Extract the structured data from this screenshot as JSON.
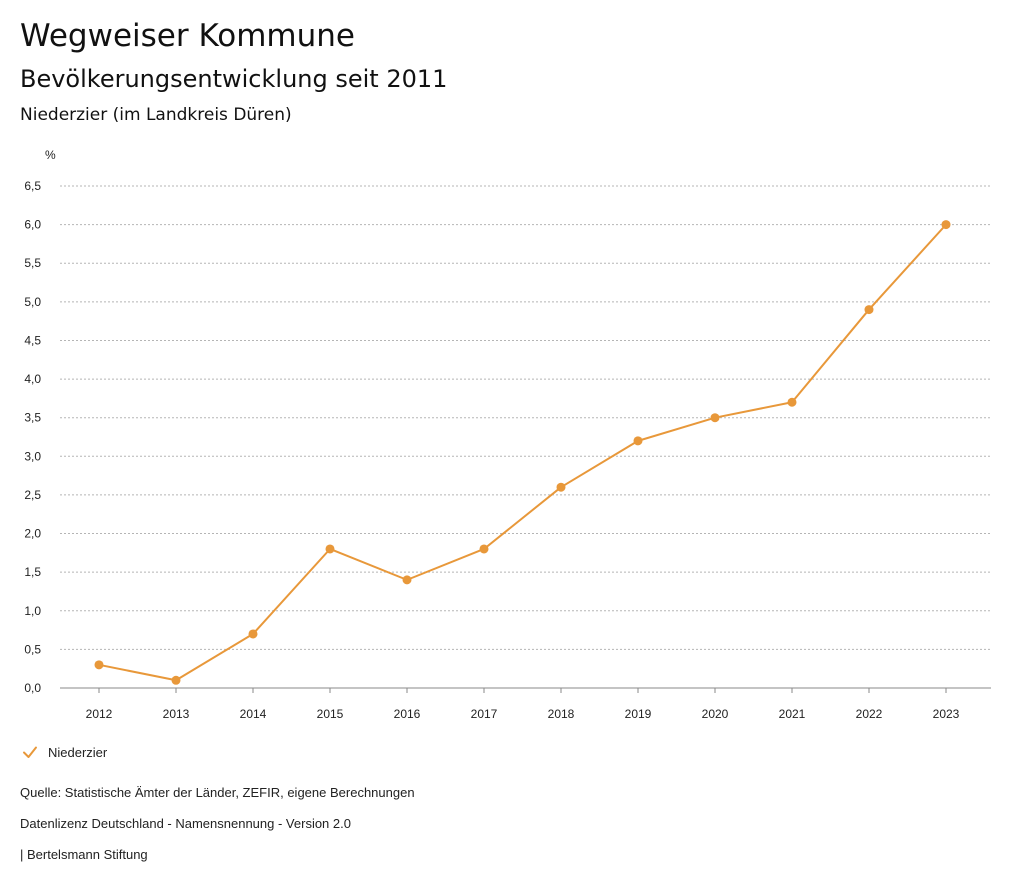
{
  "header": {
    "title": "Wegweiser Kommune",
    "subtitle": "Bevölkerungsentwicklung seit 2011",
    "region": "Niederzier (im Landkreis Düren)"
  },
  "legend": {
    "label": "Niederzier"
  },
  "footer": {
    "source": "Quelle: Statistische Ämter der Länder, ZEFIR, eigene Berechnungen",
    "license": "Datenlizenz Deutschland - Namensnennung - Version 2.0",
    "publisher": "| Bertelsmann Stiftung"
  },
  "colors": {
    "series": "#e8983a",
    "grid": "#b5b5b5",
    "text": "#222222"
  },
  "chart_data": {
    "type": "line",
    "ylabel": "%",
    "xlabel": "",
    "ylim": [
      0,
      6.5
    ],
    "yticks": [
      "0,0",
      "0,5",
      "1,0",
      "1,5",
      "2,0",
      "2,5",
      "3,0",
      "3,5",
      "4,0",
      "4,5",
      "5,0",
      "5,5",
      "6,0",
      "6,5"
    ],
    "categories": [
      "2012",
      "2013",
      "2014",
      "2015",
      "2016",
      "2017",
      "2018",
      "2019",
      "2020",
      "2021",
      "2022",
      "2023"
    ],
    "grid": true,
    "legend_position": "bottom-left",
    "series": [
      {
        "name": "Niederzier",
        "values": [
          0.3,
          0.1,
          0.7,
          1.8,
          1.4,
          1.8,
          2.6,
          3.2,
          3.5,
          3.7,
          4.9,
          6.0
        ]
      }
    ]
  }
}
